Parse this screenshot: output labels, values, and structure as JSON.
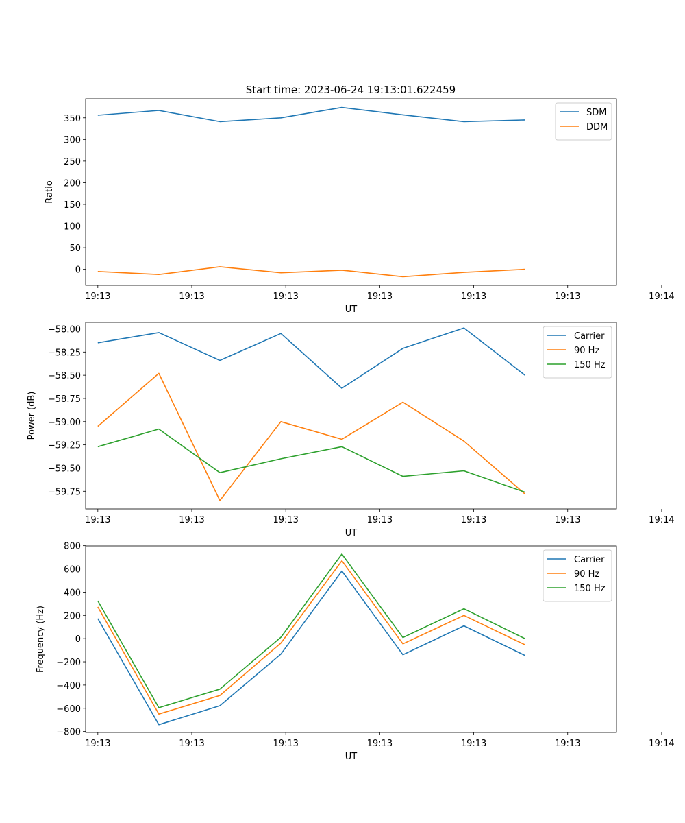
{
  "figure": {
    "title": "Start time: 2023-06-24 19:13:01.622459"
  },
  "chart_data": [
    {
      "type": "line",
      "xlabel": "UT",
      "ylabel": "Ratio",
      "x": [
        1,
        2,
        3,
        4,
        5,
        6,
        7,
        8
      ],
      "xlim": [
        0.8,
        9.5
      ],
      "xticks": [
        {
          "value": 1,
          "label": "19:13"
        },
        {
          "value": 2.54,
          "label": "19:13"
        },
        {
          "value": 4.08,
          "label": "19:13"
        },
        {
          "value": 5.62,
          "label": "19:13"
        },
        {
          "value": 7.16,
          "label": "19:13"
        },
        {
          "value": 8.7,
          "label": "19:13"
        },
        {
          "value": 10.24,
          "label": "19:14"
        }
      ],
      "ylim": [
        -37,
        394
      ],
      "yticks": [
        {
          "value": 0,
          "label": "0"
        },
        {
          "value": 50,
          "label": "50"
        },
        {
          "value": 100,
          "label": "100"
        },
        {
          "value": 150,
          "label": "150"
        },
        {
          "value": 200,
          "label": "200"
        },
        {
          "value": 250,
          "label": "250"
        },
        {
          "value": 300,
          "label": "300"
        },
        {
          "value": 350,
          "label": "350"
        }
      ],
      "legend_position": "top-right",
      "series": [
        {
          "name": "SDM",
          "color": "#1f77b4",
          "values": [
            356,
            367,
            341,
            350,
            374,
            357,
            341,
            345
          ]
        },
        {
          "name": "DDM",
          "color": "#ff7f0e",
          "values": [
            -5,
            -12,
            6,
            -8,
            -2,
            -17,
            -7,
            0
          ]
        }
      ]
    },
    {
      "type": "line",
      "xlabel": "UT",
      "ylabel": "Power (dB)",
      "x": [
        1,
        2,
        3,
        4,
        5,
        6,
        7,
        8
      ],
      "xlim": [
        0.8,
        9.5
      ],
      "xticks": [
        {
          "value": 1,
          "label": "19:13"
        },
        {
          "value": 2.54,
          "label": "19:13"
        },
        {
          "value": 4.08,
          "label": "19:13"
        },
        {
          "value": 5.62,
          "label": "19:13"
        },
        {
          "value": 7.16,
          "label": "19:13"
        },
        {
          "value": 8.7,
          "label": "19:13"
        },
        {
          "value": 10.24,
          "label": "19:14"
        }
      ],
      "ylim": [
        -59.94,
        -57.93
      ],
      "yticks": [
        {
          "value": -58.0,
          "label": "−58.00"
        },
        {
          "value": -58.25,
          "label": "−58.25"
        },
        {
          "value": -58.5,
          "label": "−58.50"
        },
        {
          "value": -58.75,
          "label": "−58.75"
        },
        {
          "value": -59.0,
          "label": "−59.00"
        },
        {
          "value": -59.25,
          "label": "−59.25"
        },
        {
          "value": -59.5,
          "label": "−59.50"
        },
        {
          "value": -59.75,
          "label": "−59.75"
        }
      ],
      "legend_position": "top-right",
      "series": [
        {
          "name": "Carrier",
          "color": "#1f77b4",
          "values": [
            -58.15,
            -58.04,
            -58.34,
            -58.05,
            -58.64,
            -58.21,
            -57.99,
            -58.5
          ]
        },
        {
          "name": "90 Hz",
          "color": "#ff7f0e",
          "values": [
            -59.05,
            -58.48,
            -59.85,
            -59.0,
            -59.19,
            -58.79,
            -59.21,
            -59.78
          ]
        },
        {
          "name": "150 Hz",
          "color": "#2ca02c",
          "values": [
            -59.27,
            -59.08,
            -59.55,
            -59.4,
            -59.27,
            -59.59,
            -59.53,
            -59.76
          ]
        }
      ]
    },
    {
      "type": "line",
      "xlabel": "UT",
      "ylabel": "Frequency (Hz)",
      "x": [
        1,
        2,
        3,
        4,
        5,
        6,
        7,
        8
      ],
      "xlim": [
        0.8,
        9.5
      ],
      "xticks": [
        {
          "value": 1,
          "label": "19:13"
        },
        {
          "value": 2.54,
          "label": "19:13"
        },
        {
          "value": 4.08,
          "label": "19:13"
        },
        {
          "value": 5.62,
          "label": "19:13"
        },
        {
          "value": 7.16,
          "label": "19:13"
        },
        {
          "value": 8.7,
          "label": "19:13"
        },
        {
          "value": 10.24,
          "label": "19:14"
        }
      ],
      "ylim": [
        -808,
        798
      ],
      "yticks": [
        {
          "value": -800,
          "label": "−800"
        },
        {
          "value": -600,
          "label": "−600"
        },
        {
          "value": -400,
          "label": "−400"
        },
        {
          "value": -200,
          "label": "−200"
        },
        {
          "value": 0,
          "label": "0"
        },
        {
          "value": 200,
          "label": "200"
        },
        {
          "value": 400,
          "label": "400"
        },
        {
          "value": 600,
          "label": "600"
        },
        {
          "value": 800,
          "label": "800"
        }
      ],
      "legend_position": "top-right",
      "series": [
        {
          "name": "Carrier",
          "color": "#1f77b4",
          "values": [
            173,
            -741,
            -578,
            -133,
            582,
            -139,
            110,
            -145
          ]
        },
        {
          "name": "90 Hz",
          "color": "#ff7f0e",
          "values": [
            273,
            -650,
            -490,
            -38,
            670,
            -45,
            200,
            -53
          ]
        },
        {
          "name": "150 Hz",
          "color": "#2ca02c",
          "values": [
            325,
            -595,
            -435,
            12,
            728,
            10,
            257,
            0
          ]
        }
      ]
    }
  ]
}
